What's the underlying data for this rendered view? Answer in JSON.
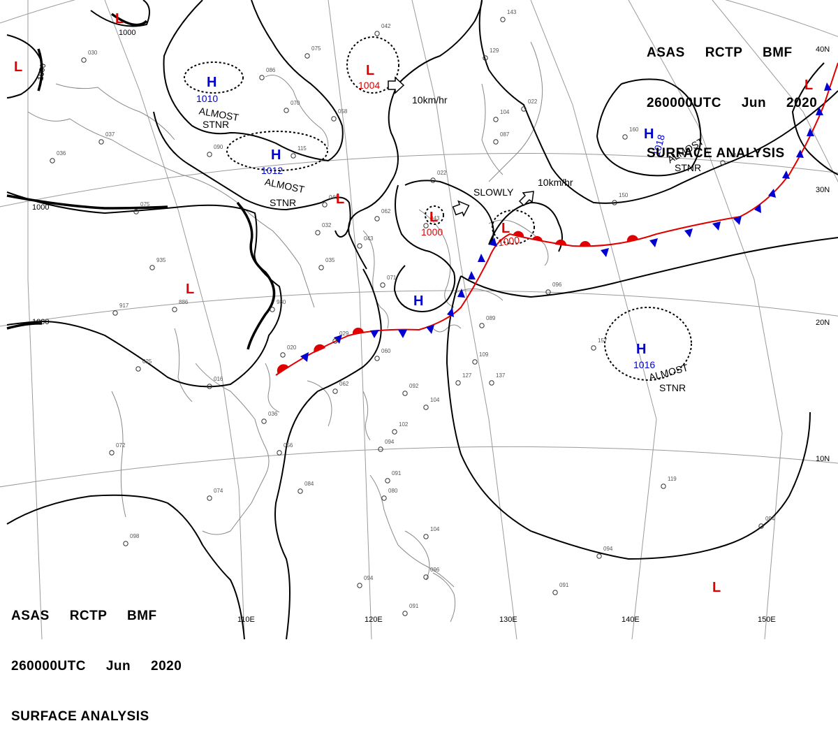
{
  "header": {
    "line1": [
      "ASAS",
      "RCTP",
      "BMF"
    ],
    "line2": [
      "260000UTC",
      "Jun",
      "2020"
    ],
    "line3": "SURFACE ANALYSIS"
  },
  "longitude_labels": [
    "110E",
    "120E",
    "130E",
    "140E",
    "150E"
  ],
  "latitude_labels": [
    "40N",
    "30N",
    "20N",
    "10N"
  ],
  "isobar_labels": [
    "1000",
    "1000",
    "1000",
    "1000"
  ],
  "pressure_systems": [
    {
      "id": "L-top-left",
      "type": "L",
      "pressure": "",
      "note": ""
    },
    {
      "id": "L-far-left",
      "type": "L",
      "pressure": "",
      "note": ""
    },
    {
      "id": "H-1010",
      "type": "H",
      "pressure": "1010",
      "note": "ALMOST STNR"
    },
    {
      "id": "H-1012",
      "type": "H",
      "pressure": "1012",
      "note": "ALMOST STNR"
    },
    {
      "id": "L-1004",
      "type": "L",
      "pressure": "1004",
      "note": "10km/hr"
    },
    {
      "id": "L-small",
      "type": "L",
      "pressure": "",
      "note": ""
    },
    {
      "id": "L-1000-inland",
      "type": "L",
      "pressure": "1000",
      "note": "SLOWLY"
    },
    {
      "id": "L-1000-front",
      "type": "L",
      "pressure": "1000",
      "note": "10km/hr"
    },
    {
      "id": "H-1018",
      "type": "H",
      "pressure": "1018",
      "note": "ALMOST STNR"
    },
    {
      "id": "L-west",
      "type": "L",
      "pressure": "",
      "note": ""
    },
    {
      "id": "H-coast",
      "type": "H",
      "pressure": "",
      "note": ""
    },
    {
      "id": "H-1016",
      "type": "H",
      "pressure": "1016",
      "note": "ALMOST STNR"
    },
    {
      "id": "L-east",
      "type": "L",
      "pressure": "",
      "note": ""
    },
    {
      "id": "L-bottom-right",
      "type": "L",
      "pressure": "",
      "note": ""
    }
  ],
  "notes": {
    "almost_stnr_line1": "ALMOST",
    "almost_stnr_line2": "STNR",
    "slowly": "SLOWLY",
    "speed": "10km/hr"
  },
  "station_samples": [
    "042",
    "075",
    "058",
    "086",
    "070",
    "090",
    "115",
    "046",
    "032",
    "035",
    "043",
    "062",
    "022",
    "043",
    "071",
    "980",
    "886",
    "917",
    "935",
    "075",
    "036",
    "037",
    "030",
    "029",
    "020",
    "060",
    "062",
    "092",
    "104",
    "102",
    "094",
    "084",
    "074",
    "072",
    "025",
    "016",
    "036",
    "056",
    "127",
    "137",
    "109",
    "089",
    "096",
    "160",
    "148",
    "150",
    "157",
    "104",
    "087",
    "022",
    "129",
    "143",
    "091",
    "080",
    "096",
    "094",
    "091",
    "094",
    "098",
    "104",
    "119",
    "094",
    "091"
  ],
  "colors": {
    "isobar": "#000000",
    "warm_front": "#e00000",
    "cold_front": "#0000d0",
    "coast": "#888888",
    "grid": "#9a9a9a"
  }
}
